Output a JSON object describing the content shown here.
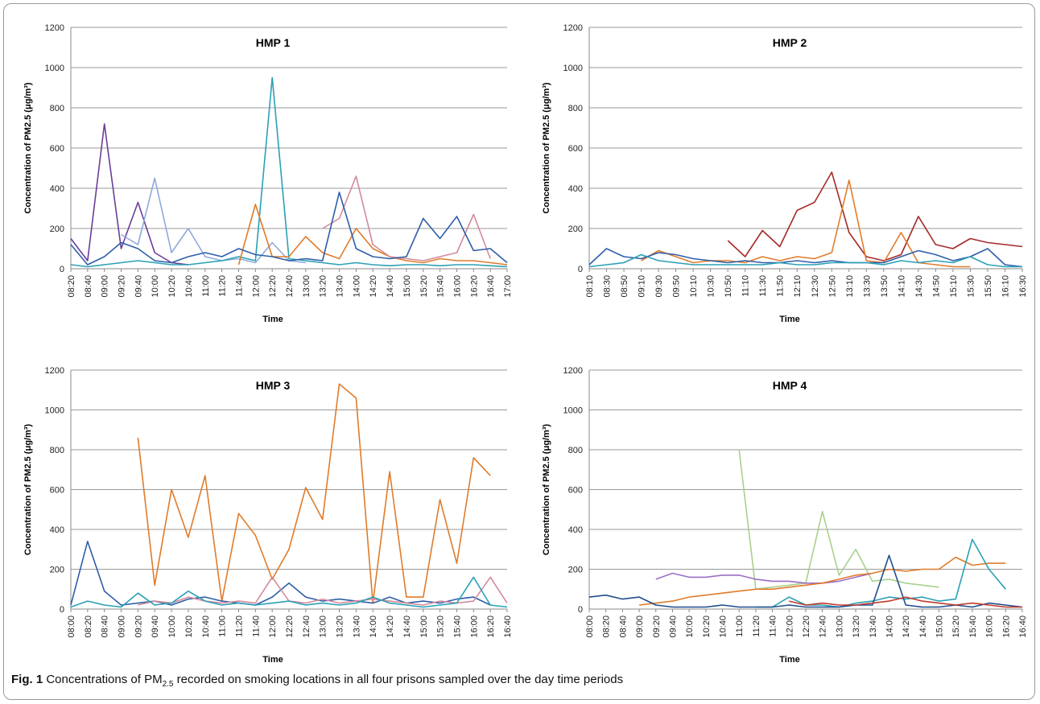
{
  "chart_data": [
    {
      "type": "line",
      "title": "HMP 1",
      "x_label": "Time",
      "y_label": "Concentration of PM2.5 (μg/m³)",
      "categories": [
        "08:20",
        "08:40",
        "09:00",
        "09:20",
        "09:40",
        "10:00",
        "10:20",
        "10:40",
        "11:00",
        "11:20",
        "11:40",
        "12:00",
        "12:20",
        "12:40",
        "13:00",
        "13:20",
        "13:40",
        "14:00",
        "14:20",
        "14:40",
        "15:00",
        "15:20",
        "15:40",
        "16:00",
        "16:20",
        "16:40",
        "17:00"
      ],
      "ylim": [
        0,
        1200
      ],
      "yticks": [
        0,
        200,
        400,
        600,
        800,
        1000,
        1200
      ],
      "grid": true,
      "series": [
        {
          "color": "#6a3d9a",
          "values": [
            150,
            40,
            720,
            100,
            330,
            80,
            30,
            20,
            null,
            null,
            null,
            null,
            null,
            null,
            null,
            null,
            null,
            null,
            null,
            null,
            null,
            null,
            null,
            null,
            null,
            null,
            null
          ]
        },
        {
          "color": "#8faadc",
          "values": [
            null,
            null,
            null,
            170,
            120,
            450,
            80,
            200,
            60,
            40,
            50,
            30,
            130,
            40,
            30,
            null,
            null,
            null,
            null,
            null,
            null,
            null,
            null,
            null,
            null,
            null,
            null
          ]
        },
        {
          "color": "#2aa0b5",
          "values": [
            20,
            10,
            20,
            30,
            40,
            30,
            20,
            20,
            30,
            40,
            60,
            40,
            950,
            50,
            40,
            30,
            20,
            30,
            20,
            15,
            20,
            20,
            15,
            20,
            20,
            15,
            10
          ]
        },
        {
          "color": "#e07b2a",
          "values": [
            null,
            null,
            null,
            null,
            null,
            null,
            null,
            null,
            null,
            null,
            20,
            320,
            60,
            60,
            160,
            80,
            50,
            200,
            100,
            60,
            40,
            30,
            50,
            40,
            40,
            30,
            20
          ]
        },
        {
          "color": "#d48a9a",
          "values": [
            null,
            null,
            null,
            null,
            null,
            null,
            null,
            null,
            null,
            null,
            null,
            null,
            null,
            null,
            null,
            200,
            250,
            460,
            120,
            60,
            50,
            40,
            60,
            80,
            270,
            50,
            null
          ]
        },
        {
          "color": "#2e5ea8",
          "values": [
            120,
            20,
            60,
            130,
            100,
            40,
            30,
            60,
            80,
            60,
            100,
            70,
            60,
            40,
            50,
            40,
            380,
            100,
            60,
            50,
            60,
            250,
            150,
            260,
            90,
            100,
            30
          ]
        }
      ]
    },
    {
      "type": "line",
      "title": "HMP 2",
      "x_label": "Time",
      "y_label": "Concentration of PM2.5 (μg/m³)",
      "categories": [
        "08:10",
        "08:30",
        "08:50",
        "09:10",
        "09:30",
        "09:50",
        "10:10",
        "10:30",
        "10:50",
        "11:10",
        "11:30",
        "11:50",
        "12:10",
        "12:30",
        "12:50",
        "13:10",
        "13:30",
        "13:50",
        "14:10",
        "14:30",
        "14:50",
        "15:10",
        "15:30",
        "15:50",
        "16:10",
        "16:30"
      ],
      "ylim": [
        0,
        1200
      ],
      "yticks": [
        0,
        200,
        400,
        600,
        800,
        1000,
        1200
      ],
      "grid": true,
      "series": [
        {
          "color": "#a52a2a",
          "values": [
            null,
            null,
            null,
            null,
            null,
            null,
            null,
            null,
            140,
            60,
            190,
            110,
            290,
            330,
            480,
            180,
            60,
            40,
            70,
            260,
            120,
            100,
            150,
            130,
            120,
            110
          ]
        },
        {
          "color": "#e07b2a",
          "values": [
            null,
            null,
            null,
            40,
            90,
            60,
            30,
            40,
            40,
            30,
            60,
            40,
            60,
            50,
            80,
            440,
            40,
            30,
            180,
            30,
            20,
            10,
            10,
            null,
            null,
            null
          ]
        },
        {
          "color": "#2e5ea8",
          "values": [
            20,
            100,
            60,
            50,
            80,
            70,
            50,
            40,
            30,
            40,
            30,
            30,
            40,
            30,
            40,
            30,
            30,
            30,
            60,
            90,
            70,
            40,
            60,
            100,
            20,
            10
          ]
        },
        {
          "color": "#2aa0b5",
          "values": [
            10,
            20,
            30,
            70,
            40,
            30,
            20,
            20,
            20,
            20,
            20,
            30,
            20,
            20,
            30,
            30,
            30,
            20,
            40,
            30,
            40,
            30,
            60,
            20,
            10,
            10
          ]
        }
      ]
    },
    {
      "type": "line",
      "title": "HMP 3",
      "x_label": "Time",
      "y_label": "Concentration of PM2.5 (μg/m³)",
      "categories": [
        "08:00",
        "08:20",
        "08:40",
        "09:00",
        "09:20",
        "09:40",
        "10:00",
        "10:20",
        "10:40",
        "11:00",
        "11:20",
        "11:40",
        "12:00",
        "12:20",
        "12:40",
        "13:00",
        "13:20",
        "13:40",
        "14:00",
        "14:20",
        "14:40",
        "15:00",
        "15:20",
        "15:40",
        "16:00",
        "16:20",
        "16:40"
      ],
      "ylim": [
        0,
        1200
      ],
      "yticks": [
        0,
        200,
        400,
        600,
        800,
        1000,
        1200
      ],
      "grid": true,
      "series": [
        {
          "color": "#e07b2a",
          "values": [
            null,
            null,
            null,
            null,
            860,
            120,
            600,
            360,
            670,
            40,
            480,
            370,
            150,
            300,
            610,
            450,
            1130,
            1060,
            30,
            690,
            60,
            60,
            550,
            230,
            760,
            670,
            null
          ]
        },
        {
          "color": "#2e5ea8",
          "values": [
            20,
            340,
            90,
            20,
            30,
            40,
            20,
            50,
            60,
            40,
            30,
            20,
            60,
            130,
            60,
            40,
            50,
            40,
            30,
            60,
            30,
            40,
            30,
            50,
            60,
            20,
            null
          ]
        },
        {
          "color": "#d48a9a",
          "values": [
            null,
            null,
            null,
            null,
            20,
            40,
            30,
            60,
            40,
            30,
            40,
            30,
            160,
            40,
            30,
            50,
            30,
            40,
            50,
            40,
            30,
            20,
            40,
            30,
            40,
            160,
            30
          ]
        },
        {
          "color": "#2aa0b5",
          "values": [
            10,
            40,
            20,
            10,
            80,
            20,
            30,
            90,
            40,
            20,
            30,
            20,
            30,
            40,
            20,
            30,
            20,
            30,
            60,
            30,
            20,
            10,
            20,
            30,
            160,
            20,
            10
          ]
        }
      ]
    },
    {
      "type": "line",
      "title": "HMP 4",
      "x_label": "Time",
      "y_label": "Concentration of PM2.5 (μg/m³)",
      "categories": [
        "08:00",
        "08:20",
        "08:40",
        "09:00",
        "09:20",
        "09:40",
        "10:00",
        "10:20",
        "10:40",
        "11:00",
        "11:20",
        "11:40",
        "12:00",
        "12:20",
        "12:40",
        "13:00",
        "13:20",
        "13:40",
        "14:00",
        "14:20",
        "14:40",
        "15:00",
        "15:20",
        "15:40",
        "16:00",
        "16:20",
        "16:40"
      ],
      "ylim": [
        0,
        1200
      ],
      "yticks": [
        0,
        200,
        400,
        600,
        800,
        1000,
        1200
      ],
      "grid": true,
      "series": [
        {
          "color": "#a8d08d",
          "values": [
            null,
            null,
            null,
            null,
            null,
            null,
            null,
            null,
            null,
            800,
            100,
            110,
            120,
            130,
            490,
            170,
            300,
            140,
            150,
            130,
            120,
            110,
            null,
            null,
            null,
            null,
            null
          ]
        },
        {
          "color": "#9a6fc4",
          "values": [
            null,
            null,
            null,
            null,
            150,
            180,
            160,
            160,
            170,
            170,
            150,
            140,
            140,
            130,
            130,
            140,
            160,
            180,
            null,
            null,
            null,
            null,
            null,
            null,
            null,
            null,
            null
          ]
        },
        {
          "color": "#e07b2a",
          "values": [
            null,
            null,
            null,
            20,
            30,
            40,
            60,
            70,
            80,
            90,
            100,
            100,
            110,
            120,
            130,
            150,
            170,
            180,
            200,
            190,
            200,
            200,
            260,
            220,
            230,
            230,
            null
          ]
        },
        {
          "color": "#2aa0b5",
          "values": [
            null,
            null,
            null,
            null,
            null,
            null,
            null,
            null,
            null,
            null,
            10,
            10,
            60,
            20,
            20,
            10,
            30,
            40,
            60,
            50,
            60,
            40,
            50,
            350,
            200,
            100,
            null
          ]
        },
        {
          "color": "#1f4e8c",
          "values": [
            60,
            70,
            50,
            60,
            20,
            10,
            10,
            10,
            20,
            10,
            10,
            10,
            20,
            10,
            10,
            10,
            20,
            20,
            270,
            20,
            10,
            10,
            20,
            10,
            30,
            20,
            10
          ]
        },
        {
          "color": "#c0392b",
          "values": [
            null,
            null,
            null,
            null,
            null,
            null,
            null,
            null,
            null,
            null,
            null,
            null,
            40,
            20,
            30,
            20,
            20,
            30,
            40,
            60,
            40,
            30,
            20,
            30,
            20,
            10,
            10
          ]
        }
      ]
    }
  ],
  "caption": {
    "label": "Fig. 1",
    "text_before": "Concentrations of PM",
    "subscript": "2.5",
    "text_after": " recorded on smoking locations in all four prisons sampled over the day time periods"
  }
}
